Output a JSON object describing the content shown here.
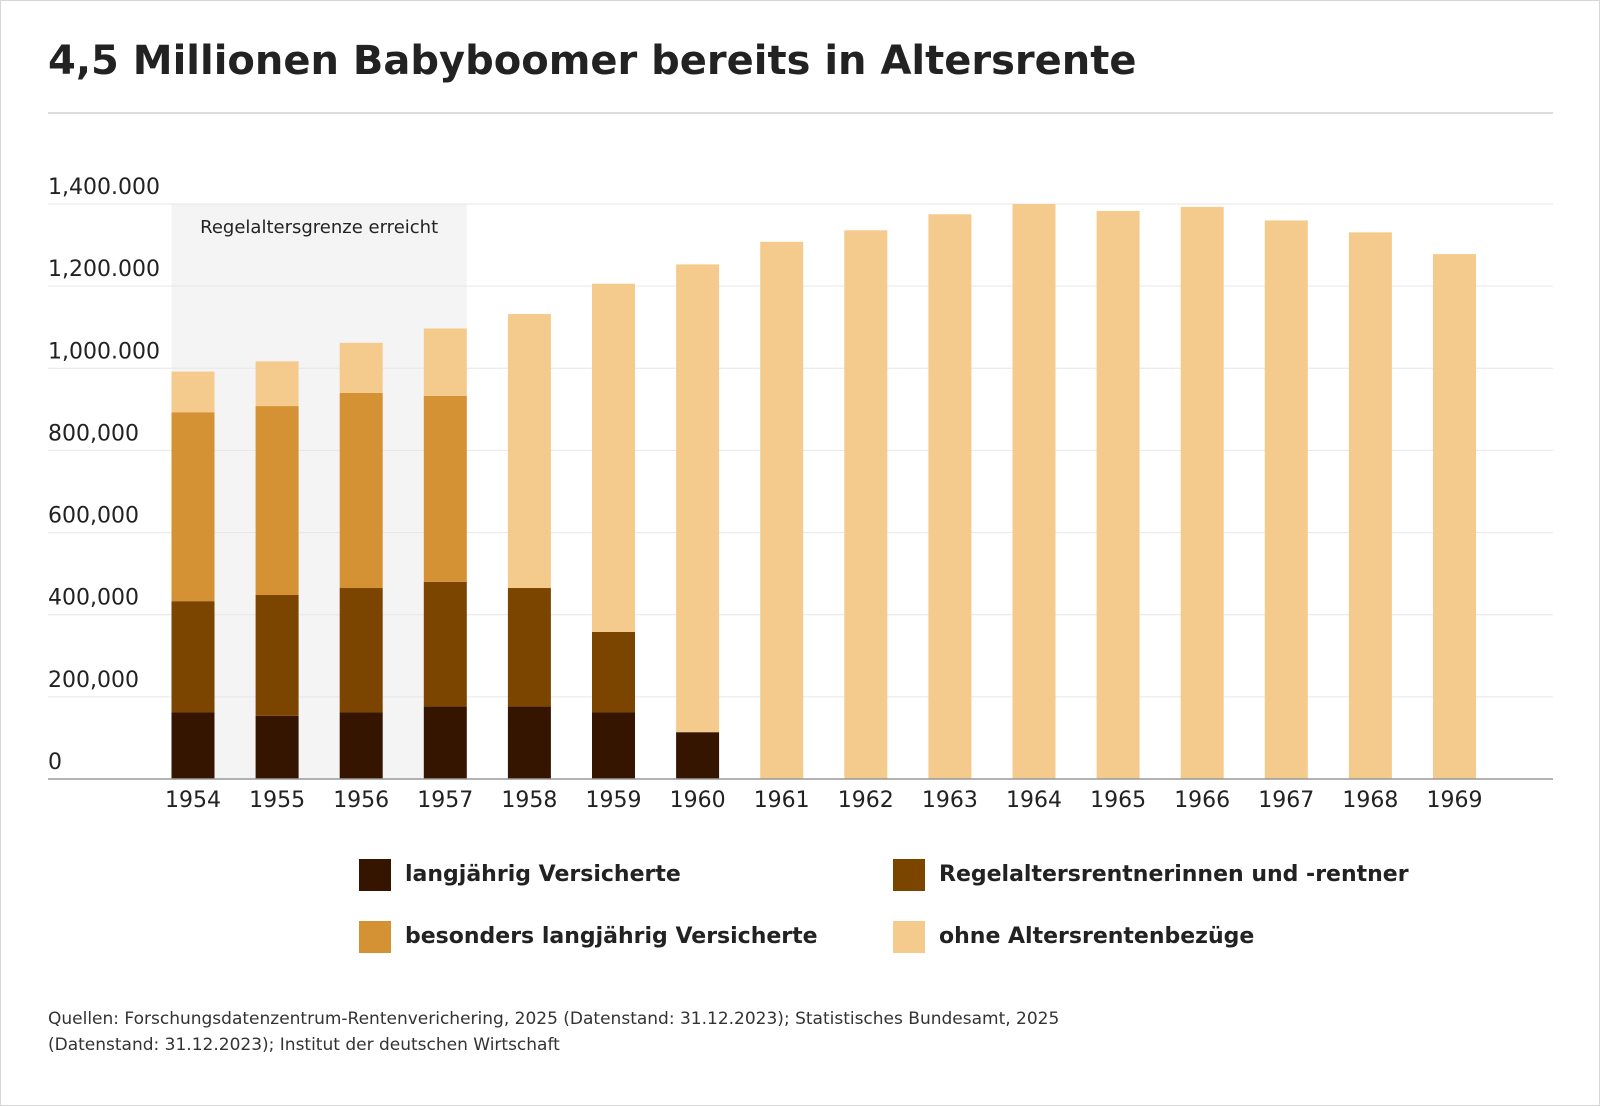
{
  "chart_data": {
    "type": "stacked_bar",
    "title": "4,5 Millionen Babyboomer bereits in Altersrente",
    "annotation": "Regelaltersgrenze erreicht",
    "shaded_range": [
      "1954",
      "1957"
    ],
    "categories": [
      "1954",
      "1955",
      "1956",
      "1957",
      "1958",
      "1959",
      "1960",
      "1961",
      "1962",
      "1963",
      "1964",
      "1965",
      "1966",
      "1967",
      "1968",
      "1969"
    ],
    "series": [
      {
        "name": "langjährig Versicherte",
        "color": "#361500",
        "values": [
          162000,
          154000,
          162000,
          177000,
          177000,
          162000,
          114000,
          0,
          0,
          0,
          0,
          0,
          0,
          0,
          0,
          0
        ]
      },
      {
        "name": "Regelaltersrentnerinnen und -rentner",
        "color": "#7b4500",
        "values": [
          271000,
          294000,
          303000,
          303000,
          288000,
          196000,
          0,
          0,
          0,
          0,
          0,
          0,
          0,
          0,
          0,
          0
        ]
      },
      {
        "name": "besonders langjährig Versicherte",
        "color": "#d59235",
        "values": [
          460000,
          460000,
          475000,
          453000,
          0,
          0,
          0,
          0,
          0,
          0,
          0,
          0,
          0,
          0,
          0,
          0
        ]
      },
      {
        "name": "ohne Altersrentenbezüge",
        "color": "#f5cb8d",
        "values": [
          99000,
          109000,
          122000,
          164000,
          667000,
          848000,
          1139000,
          1308000,
          1336000,
          1375000,
          1400000,
          1383000,
          1393000,
          1360000,
          1331000,
          1278000
        ]
      }
    ],
    "ylim": [
      0,
      1400000
    ],
    "yticks": [
      0,
      {
        "value": 200000,
        "label": "200,000"
      },
      {
        "value": 400000,
        "label": "400,000"
      },
      {
        "value": 600000,
        "label": "600,000"
      },
      {
        "value": 800000,
        "label": "800,000"
      },
      {
        "value": 1000000,
        "label": "1,000.000"
      },
      {
        "value": 1200000,
        "label": "1,200.000"
      },
      {
        "value": 1400000,
        "label": "1,400.000"
      }
    ],
    "grid": true,
    "source": "Quellen: Forschungsdatenzentrum-Rentenverichering, 2025 (Datenstand: 31.12.2023); Statistisches Bundesamt, 2025 (Datenstand: 31.12.2023); Institut der deutschen Wirtschaft"
  }
}
